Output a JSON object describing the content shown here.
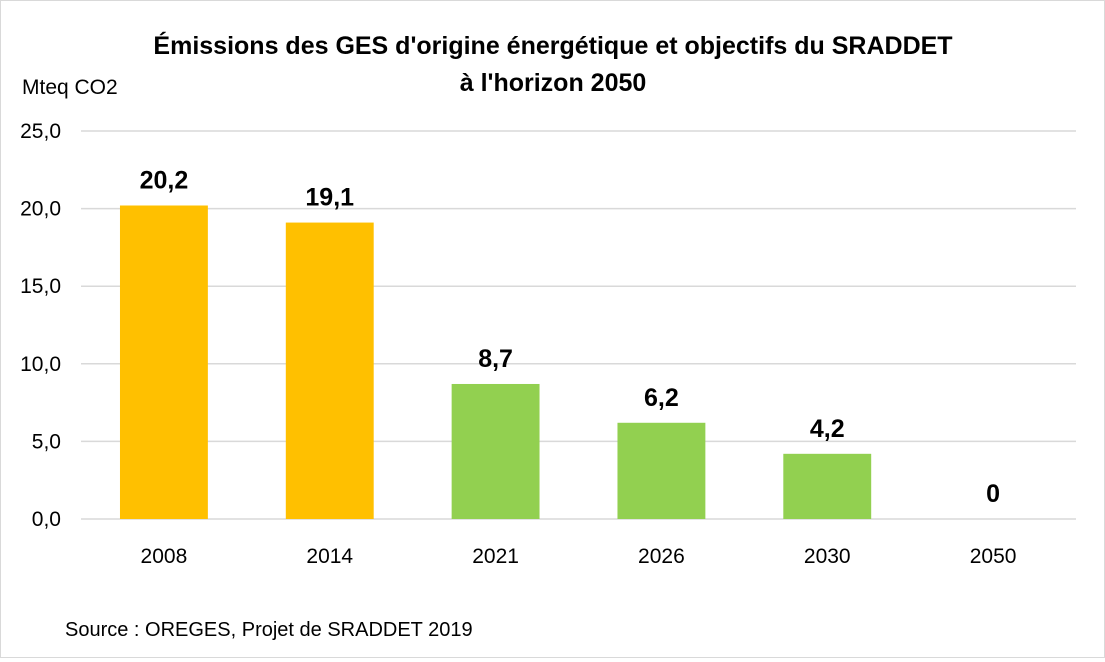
{
  "chart_data": {
    "type": "bar",
    "title_lines": [
      "Émissions des GES d'origine énergétique et objectifs du SRADDET",
      "à l'horizon 2050"
    ],
    "ylabel": "Mteq CO2",
    "xlabel": "",
    "categories": [
      "2008",
      "2014",
      "2021",
      "2026",
      "2030",
      "2050"
    ],
    "values": [
      20.2,
      19.1,
      8.7,
      6.2,
      4.2,
      0
    ],
    "data_labels": [
      "20,2",
      "19,1",
      "8,7",
      "6,2",
      "4,2",
      "0"
    ],
    "bar_colors": [
      "#ffc000",
      "#ffc000",
      "#92d050",
      "#92d050",
      "#92d050",
      "#92d050"
    ],
    "ylim": [
      0,
      25
    ],
    "yticks": [
      0,
      5,
      10,
      15,
      20,
      25
    ],
    "ytick_labels": [
      "0,0",
      "5,0",
      "10,0",
      "15,0",
      "20,0",
      "25,0"
    ],
    "grid": true,
    "gridline_color": "#d9d9d9",
    "source": "Source : OREGES, Projet de SRADDET 2019"
  }
}
